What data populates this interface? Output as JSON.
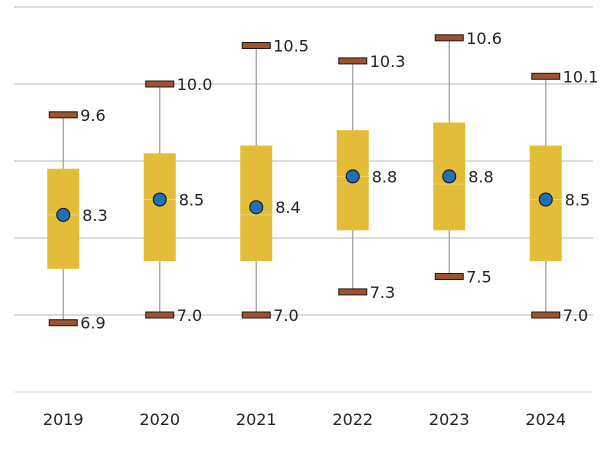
{
  "chart_data": {
    "type": "box",
    "title": "",
    "xlabel": "",
    "ylabel": "",
    "ylim": [
      6,
      11
    ],
    "grid": true,
    "y_gridlines": [
      6,
      7,
      8,
      9,
      10,
      11
    ],
    "categories": [
      "2019",
      "2020",
      "2021",
      "2022",
      "2023",
      "2024"
    ],
    "series": [
      {
        "category": "2019",
        "min": 6.9,
        "q1": 7.6,
        "median": 8.3,
        "q3": 8.9,
        "max": 9.6,
        "mean": 8.3,
        "min_label": "6.9",
        "max_label": "9.6",
        "mean_label": "8.3"
      },
      {
        "category": "2020",
        "min": 7.0,
        "q1": 7.7,
        "median": 8.5,
        "q3": 9.1,
        "max": 10.0,
        "mean": 8.5,
        "min_label": "7.0",
        "max_label": "10.0",
        "mean_label": "8.5"
      },
      {
        "category": "2021",
        "min": 7.0,
        "q1": 7.7,
        "median": 8.3,
        "q3": 9.2,
        "max": 10.5,
        "mean": 8.4,
        "min_label": "7.0",
        "max_label": "10.5",
        "mean_label": "8.4"
      },
      {
        "category": "2022",
        "min": 7.3,
        "q1": 8.1,
        "median": 8.8,
        "q3": 9.4,
        "max": 10.3,
        "mean": 8.8,
        "min_label": "7.3",
        "max_label": "10.3",
        "mean_label": "8.8"
      },
      {
        "category": "2023",
        "min": 7.5,
        "q1": 8.1,
        "median": 8.7,
        "q3": 9.5,
        "max": 10.6,
        "mean": 8.8,
        "min_label": "7.5",
        "max_label": "10.6",
        "mean_label": "8.8"
      },
      {
        "category": "2024",
        "min": 7.0,
        "q1": 7.7,
        "median": 8.5,
        "q3": 9.2,
        "max": 10.1,
        "mean": 8.5,
        "min_label": "7.0",
        "max_label": "10.1",
        "mean_label": "8.5"
      }
    ],
    "colors": {
      "box": "#E3BC3A",
      "median_line": "#EDD270",
      "whisker": "#9A9A9A",
      "cap": "#A0522D",
      "cap_stroke": "#1a1a1a",
      "mean_dot": "#1F6FB5",
      "gridline": "#C8C8C8"
    }
  }
}
